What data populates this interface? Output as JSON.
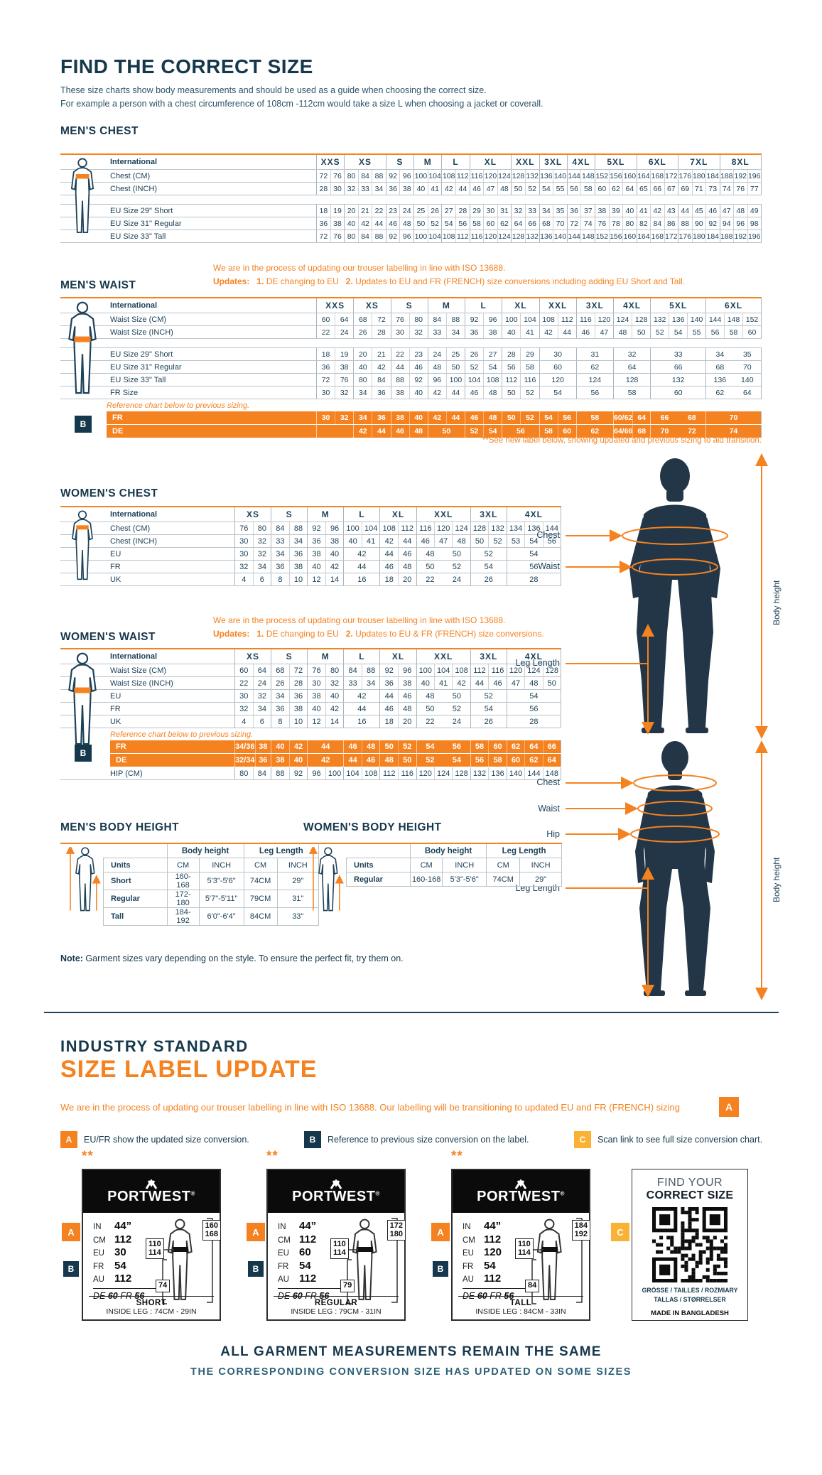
{
  "header": {
    "title": "FIND THE CORRECT SIZE",
    "intro1": "These size charts show body measurements and should be used as a guide when choosing the correct size.",
    "intro2": "For example a person with a chest circumference of 108cm -112cm would take a size L when choosing a jacket or coverall."
  },
  "colors": {
    "navy": "#16384c",
    "orange": "#f58220",
    "amber": "#f9b233",
    "table_text": "#1e4259"
  },
  "badges": {
    "a": "A",
    "b": "B",
    "c": "C"
  },
  "notes": {
    "iso": "We are in the process of updating our trouser labelling in line with ISO 13688.",
    "updates_label": "Updates:",
    "n1": "1.",
    "u1": "DE changing to EU",
    "n2": "2.",
    "mens_u2": "Updates to EU and FR (FRENCH) size conversions including adding EU Short and Tall.",
    "womens_u2": "Updates to EU & FR (FRENCH) size conversions.",
    "reference": "Reference chart below to previous sizing.",
    "see_label": "**See new label below, showing updated and previous sizing to aid transition.",
    "note_label": "Note:",
    "note_text": " Garment sizes vary depending on the style. To ensure the perfect fit, try them on."
  },
  "tables": {
    "mens_chest": {
      "title": "MEN'S CHEST",
      "columns": [
        {
          "label": "XXS",
          "span": 2
        },
        {
          "label": "XS",
          "span": 3
        },
        {
          "label": "S",
          "span": 2
        },
        {
          "label": "M",
          "span": 2
        },
        {
          "label": "L",
          "span": 2
        },
        {
          "label": "XL",
          "span": 3
        },
        {
          "label": "XXL",
          "span": 2
        },
        {
          "label": "3XL",
          "span": 2
        },
        {
          "label": "4XL",
          "span": 2
        },
        {
          "label": "5XL",
          "span": 3
        },
        {
          "label": "6XL",
          "span": 3
        },
        {
          "label": "7XL",
          "span": 3
        },
        {
          "label": "8XL",
          "span": 3
        }
      ],
      "rows": [
        {
          "kind": "heads",
          "label": "International"
        },
        {
          "kind": "vals",
          "label": "Chest (CM)",
          "cells": [
            "72 76",
            "80 84 88",
            "92 96",
            "100 104",
            "108 112",
            "116 120 124",
            "128 132",
            "136 140",
            "144 148",
            "152 156 160",
            "164 168 172",
            "176 180 184",
            "188 192 196"
          ]
        },
        {
          "kind": "vals",
          "label": "Chest (INCH)",
          "cells": [
            "28 30",
            "32 33 34",
            "36 38",
            "40 41",
            "42 44",
            "46 47 48",
            "50 52",
            "54 55",
            "56 58",
            "60 62 64",
            "65 66 67",
            "69 71 73",
            "74 76 77"
          ]
        },
        {
          "kind": "gap"
        },
        {
          "kind": "vals",
          "label": "EU Size 29\" Short",
          "cells": [
            "18 19",
            "20 21 22",
            "23 24",
            "25 26",
            "27 28",
            "29 30 31",
            "32 33",
            "34 35",
            "36 37",
            "38 39 40",
            "41 42 43",
            "44 45 46",
            "47 48 49"
          ]
        },
        {
          "kind": "vals",
          "label": "EU Size 31\" Regular",
          "cells": [
            "36 38",
            "40 42 44",
            "46 48",
            "50 52",
            "54 56",
            "58 60 62",
            "64 66",
            "68 70",
            "72 74",
            "76 78 80",
            "82 84 86",
            "88 90 92",
            "94 96 98"
          ]
        },
        {
          "kind": "vals",
          "label": "EU Size 33\" Tall",
          "cells": [
            "72 76",
            "80 84 88",
            "92 96",
            "100 104",
            "108 112",
            "116 120 124",
            "128 132",
            "136 140",
            "144 148",
            "152 156 160",
            "164 168 172",
            "176 180 184",
            "188 192 196"
          ]
        }
      ]
    },
    "mens_waist": {
      "title": "MEN'S WAIST",
      "badge": "B",
      "columns": [
        {
          "label": "XXS",
          "span": 2
        },
        {
          "label": "XS",
          "span": 2
        },
        {
          "label": "S",
          "span": 2
        },
        {
          "label": "M",
          "span": 2
        },
        {
          "label": "L",
          "span": 2
        },
        {
          "label": "XL",
          "span": 2
        },
        {
          "label": "XXL",
          "span": 2
        },
        {
          "label": "3XL",
          "span": 2
        },
        {
          "label": "4XL",
          "span": 2
        },
        {
          "label": "5XL",
          "span": 3
        },
        {
          "label": "6XL",
          "span": 3
        }
      ],
      "rows": [
        {
          "kind": "heads",
          "label": "International"
        },
        {
          "kind": "vals",
          "label": "Waist Size (CM)",
          "cells": [
            "60 64",
            "68 72",
            "76 80",
            "84 88",
            "92 96",
            "100 104",
            "108 112",
            "116 120",
            "124 128",
            "132 136 140",
            "144 148 152"
          ]
        },
        {
          "kind": "vals",
          "label": "Waist Size (INCH)",
          "cells": [
            "22 24",
            "26 28",
            "30 32",
            "33 34",
            "36 38",
            "40 41",
            "42 44",
            "46 47",
            "48 50",
            "52 54 55",
            "56 58 60"
          ]
        },
        {
          "kind": "gap"
        },
        {
          "kind": "vals",
          "label": "EU Size 29\" Short",
          "cells": [
            "18 19",
            "20 21",
            "22 23",
            "24 25",
            "26 27",
            "28 29",
            "30",
            "31",
            "32",
            "33",
            "34 35"
          ]
        },
        {
          "kind": "vals",
          "label": "EU Size 31\" Regular",
          "cells": [
            "36 38",
            "40 42",
            "44 46",
            "48 50",
            "52 54",
            "56 58",
            "60",
            "62",
            "64",
            "66",
            "68 70"
          ]
        },
        {
          "kind": "vals",
          "label": "EU Size 33\" Tall",
          "cells": [
            "72 76",
            "80 84",
            "88 92",
            "96 100",
            "104 108",
            "112 116",
            "120",
            "124",
            "128",
            "132",
            "136 140"
          ]
        },
        {
          "kind": "vals",
          "label": "FR Size",
          "cells": [
            "30 32",
            "34 36",
            "38 40",
            "42 44",
            "46 48",
            "50 52",
            "54",
            "56",
            "58",
            "60",
            "62 64"
          ]
        },
        {
          "kind": "note",
          "text": "Reference chart below to previous sizing."
        },
        {
          "kind": "vals",
          "label": "FR",
          "orange": true,
          "cells": [
            "30 32",
            "34 36",
            "38 40",
            "42 44",
            "46 48",
            "50 52",
            "54 56",
            "58",
            "60/62 64",
            "66 68",
            "70"
          ]
        },
        {
          "kind": "vals",
          "label": "DE",
          "orange": true,
          "cells": [
            "",
            "42 44",
            "46 48",
            "50",
            "52 54",
            "56",
            "58 60",
            "62",
            "64/66 68",
            "70 72",
            "74"
          ]
        }
      ]
    },
    "womens_chest": {
      "title": "WOMEN'S CHEST",
      "columns": [
        {
          "label": "XS",
          "span": 2
        },
        {
          "label": "S",
          "span": 2
        },
        {
          "label": "M",
          "span": 2
        },
        {
          "label": "L",
          "span": 2
        },
        {
          "label": "XL",
          "span": 2
        },
        {
          "label": "XXL",
          "span": 3
        },
        {
          "label": "3XL",
          "span": 2
        },
        {
          "label": "4XL",
          "span": 3
        }
      ],
      "rows": [
        {
          "kind": "heads",
          "label": "International"
        },
        {
          "kind": "vals",
          "label": "Chest (CM)",
          "cells": [
            "76 80",
            "84 88",
            "92 96",
            "100 104",
            "108 112",
            "116 120 124",
            "128 132",
            "134 136 144"
          ]
        },
        {
          "kind": "vals",
          "label": "Chest (INCH)",
          "cells": [
            "30 32",
            "33 34",
            "36 38",
            "40 41",
            "42 44",
            "46 47 48",
            "50 52",
            "53 54 56"
          ]
        },
        {
          "kind": "vals",
          "label": "EU",
          "cells": [
            "30 32",
            "34 36",
            "38 40",
            "42",
            "44 46",
            "48 50",
            "52",
            "54"
          ]
        },
        {
          "kind": "vals",
          "label": "FR",
          "cells": [
            "32 34",
            "36 38",
            "40 42",
            "44",
            "46 48",
            "50 52",
            "54",
            "56"
          ]
        },
        {
          "kind": "vals",
          "label": "UK",
          "cells": [
            "4 6",
            "8 10",
            "12 14",
            "16",
            "18 20",
            "22 24",
            "26",
            "28"
          ]
        }
      ]
    },
    "womens_waist": {
      "title": "WOMEN'S WAIST",
      "badge": "B",
      "columns": [
        {
          "label": "XS",
          "span": 2
        },
        {
          "label": "S",
          "span": 2
        },
        {
          "label": "M",
          "span": 2
        },
        {
          "label": "L",
          "span": 2
        },
        {
          "label": "XL",
          "span": 2
        },
        {
          "label": "XXL",
          "span": 3
        },
        {
          "label": "3XL",
          "span": 2
        },
        {
          "label": "4XL",
          "span": 3
        }
      ],
      "rows": [
        {
          "kind": "heads",
          "label": "International"
        },
        {
          "kind": "vals",
          "label": "Waist Size (CM)",
          "cells": [
            "60 64",
            "68 72",
            "76 80",
            "84 88",
            "92 96",
            "100 104 108",
            "112 116",
            "120 124 128"
          ]
        },
        {
          "kind": "vals",
          "label": "Waist Size (INCH)",
          "cells": [
            "22 24",
            "26 28",
            "30 32",
            "33 34",
            "36 38",
            "40 41 42",
            "44 46",
            "47 48 50"
          ]
        },
        {
          "kind": "vals",
          "label": "EU",
          "cells": [
            "30 32",
            "34 36",
            "38 40",
            "42",
            "44 46",
            "48 50",
            "52",
            "54"
          ]
        },
        {
          "kind": "vals",
          "label": "FR",
          "cells": [
            "32 34",
            "36 38",
            "40 42",
            "44",
            "46 48",
            "50 52",
            "54",
            "56"
          ]
        },
        {
          "kind": "vals",
          "label": "UK",
          "cells": [
            "4 6",
            "8 10",
            "12 14",
            "16",
            "18 20",
            "22 24",
            "26",
            "28"
          ]
        },
        {
          "kind": "note",
          "text": "Reference chart below to previous sizing."
        },
        {
          "kind": "vals",
          "label": "FR",
          "orange": true,
          "cells": [
            "34/36 38",
            "40 42",
            "44",
            "46 48",
            "50 52",
            "54 56",
            "58 60",
            "62 64 66"
          ]
        },
        {
          "kind": "vals",
          "label": "DE",
          "orange": true,
          "cells": [
            "32/34 36",
            "38 40",
            "42",
            "44 46",
            "48 50",
            "52 54",
            "56 58",
            "60 62 64"
          ]
        },
        {
          "kind": "vals",
          "label": "HIP (CM)",
          "cells": [
            "80 84",
            "88 92",
            "96 100",
            "104 108",
            "112 116",
            "120 124 128",
            "132 136",
            "140 144 148"
          ]
        }
      ]
    },
    "mens_height": {
      "title": "MEN'S BODY HEIGHT",
      "groups": [
        "Body height",
        "Leg Length"
      ],
      "col_headers": [
        "Units",
        "CM",
        "INCH",
        "CM",
        "INCH"
      ],
      "rows": [
        [
          "Short",
          "160-168",
          "5'3\"-5'6\"",
          "74CM",
          "29\""
        ],
        [
          "Regular",
          "172-180",
          "5'7\"-5'11\"",
          "79CM",
          "31\""
        ],
        [
          "Tall",
          "184-192",
          "6'0\"-6'4\"",
          "84CM",
          "33\""
        ]
      ]
    },
    "womens_height": {
      "title": "WOMEN'S BODY HEIGHT",
      "groups": [
        "Body height",
        "Leg Length"
      ],
      "col_headers": [
        "Units",
        "CM",
        "INCH",
        "CM",
        "INCH"
      ],
      "rows": [
        [
          "Regular",
          "160-168",
          "5'3\"-5'6\"",
          "74CM",
          "29\""
        ]
      ]
    }
  },
  "figures": {
    "m_chest": "Chest",
    "m_waist": "Waist",
    "m_leg": "Leg Length",
    "m_height": "Body height",
    "w_chest": "Chest",
    "w_waist": "Waist",
    "w_hip": "Hip",
    "w_leg": "Leg Length",
    "w_height": "Body height"
  },
  "industry": {
    "kicker": "INDUSTRY STANDARD",
    "title": "SIZE LABEL UPDATE",
    "para": "We are in the process of updating our trouser labelling in line with ISO 13688. Our labelling will be transitioning to updated EU and FR (FRENCH) sizing"
  },
  "legend": [
    {
      "badge": "A",
      "text": "EU/FR show the updated size conversion."
    },
    {
      "badge": "B",
      "text": "Reference to previous size conversion on the label."
    },
    {
      "badge": "C",
      "text": "Scan link to see full size conversion chart."
    }
  ],
  "brand": {
    "name": "PORTWEST",
    "reg": "®"
  },
  "cards": [
    {
      "stars": "**",
      "rows": [
        [
          "IN",
          "44”"
        ],
        [
          "CM",
          "112"
        ],
        [
          "EU",
          "30"
        ],
        [
          "FR",
          "54"
        ],
        [
          "AU",
          "112"
        ]
      ],
      "de": [
        "DE",
        "60",
        "FR",
        "56"
      ],
      "waist_box": "110\n114",
      "height_box": "160\n168",
      "leg_box": "74",
      "name": "SHORT",
      "inside_leg": "INSIDE LEG : 74CM - 29IN"
    },
    {
      "stars": "**",
      "rows": [
        [
          "IN",
          "44”"
        ],
        [
          "CM",
          "112"
        ],
        [
          "EU",
          "60"
        ],
        [
          "FR",
          "54"
        ],
        [
          "AU",
          "112"
        ]
      ],
      "de": [
        "DE",
        "60",
        "FR",
        "56"
      ],
      "waist_box": "110\n114",
      "height_box": "172\n180",
      "leg_box": "79",
      "name": "REGULAR",
      "inside_leg": "INSIDE LEG : 79CM - 31IN"
    },
    {
      "stars": "**",
      "rows": [
        [
          "IN",
          "44”"
        ],
        [
          "CM",
          "112"
        ],
        [
          "EU",
          "120"
        ],
        [
          "FR",
          "54"
        ],
        [
          "AU",
          "112"
        ]
      ],
      "de": [
        "DE",
        "60",
        "FR",
        "56"
      ],
      "waist_box": "110\n114",
      "height_box": "184\n192",
      "leg_box": "84",
      "name": "TALL",
      "inside_leg": "INSIDE LEG : 84CM - 33IN"
    }
  ],
  "qr_card": {
    "line1": "FIND YOUR",
    "line2": "CORRECT SIZE",
    "langs1": "GRÖSSE / TAILLES / ROZMIARY",
    "langs2": "TALLAS / STØRRELSER",
    "made": "MADE IN BANGLADESH"
  },
  "footer": {
    "line1": "ALL GARMENT MEASUREMENTS REMAIN THE SAME",
    "line2": "THE CORRESPONDING CONVERSION SIZE HAS UPDATED ON SOME SIZES"
  }
}
